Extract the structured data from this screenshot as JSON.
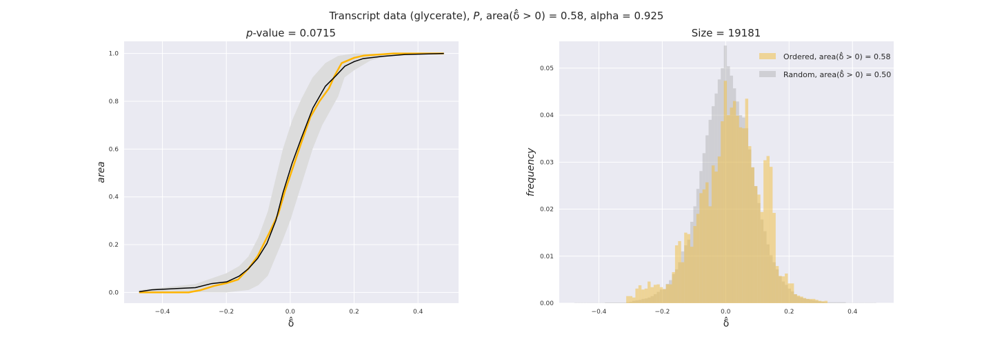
{
  "figure": {
    "title_parts": [
      "Transcript data (glycerate), ",
      "P",
      ", area(δ̂ > 0) = 0.58, alpha = 0.925"
    ]
  },
  "chart_data": [
    {
      "type": "line",
      "title_parts": [
        "p",
        "-value = 0.0715"
      ],
      "xlabel": "δ̂",
      "ylabel": "area",
      "xlim": [
        -0.52,
        0.527
      ],
      "ylim": [
        -0.045,
        1.051
      ],
      "xticks": [
        -0.4,
        -0.2,
        0.0,
        0.2,
        0.4
      ],
      "xtick_labels": [
        "−0.4",
        "−0.2",
        "0.0",
        "0.2",
        "0.4"
      ],
      "yticks": [
        0.0,
        0.2,
        0.4,
        0.6,
        0.8,
        1.0
      ],
      "ytick_labels": [
        "0.0",
        "0.2",
        "0.4",
        "0.6",
        "0.8",
        "1.0"
      ],
      "grid": true,
      "colors": {
        "ordered": "#FFB400",
        "random": "#000000",
        "band": "#DCDCDC",
        "background": "#EAEAF2"
      },
      "band": {
        "upper": [
          [
            -0.473,
            0.01
          ],
          [
            -0.297,
            0.035
          ],
          [
            -0.2,
            0.08
          ],
          [
            -0.16,
            0.11
          ],
          [
            -0.131,
            0.15
          ],
          [
            -0.1,
            0.23
          ],
          [
            -0.07,
            0.34
          ],
          [
            -0.045,
            0.48
          ],
          [
            -0.023,
            0.6
          ],
          [
            0.006,
            0.72
          ],
          [
            0.035,
            0.81
          ],
          [
            0.07,
            0.9
          ],
          [
            0.11,
            0.96
          ],
          [
            0.15,
            0.99
          ],
          [
            0.2,
            1.0
          ],
          [
            0.481,
            1.0
          ]
        ],
        "lower": [
          [
            -0.473,
            0.0
          ],
          [
            -0.2,
            0.0
          ],
          [
            -0.13,
            0.01
          ],
          [
            -0.1,
            0.03
          ],
          [
            -0.07,
            0.07
          ],
          [
            -0.045,
            0.15
          ],
          [
            -0.023,
            0.22
          ],
          [
            0.0,
            0.3
          ],
          [
            0.035,
            0.45
          ],
          [
            0.07,
            0.6
          ],
          [
            0.1,
            0.7
          ],
          [
            0.15,
            0.82
          ],
          [
            0.17,
            0.9
          ],
          [
            0.2,
            0.93
          ],
          [
            0.25,
            0.97
          ],
          [
            0.3,
            0.99
          ],
          [
            0.481,
            1.0
          ]
        ]
      },
      "series": [
        {
          "key": "random",
          "x": [
            -0.473,
            -0.433,
            -0.297,
            -0.246,
            -0.199,
            -0.16,
            -0.131,
            -0.102,
            -0.073,
            -0.045,
            -0.023,
            0.006,
            0.035,
            0.071,
            0.11,
            0.143,
            0.171,
            0.2,
            0.229,
            0.287,
            0.359,
            0.481
          ],
          "y": [
            0.003,
            0.011,
            0.02,
            0.037,
            0.044,
            0.068,
            0.099,
            0.142,
            0.205,
            0.301,
            0.416,
            0.541,
            0.647,
            0.772,
            0.863,
            0.907,
            0.947,
            0.966,
            0.979,
            0.988,
            0.996,
            1.0
          ]
        },
        {
          "key": "ordered",
          "x": [
            -0.473,
            -0.318,
            -0.282,
            -0.239,
            -0.199,
            -0.163,
            -0.131,
            -0.102,
            -0.066,
            -0.037,
            -0.016,
            0.013,
            0.035,
            0.063,
            0.092,
            0.121,
            0.139,
            0.161,
            0.2,
            0.229,
            0.323,
            0.481
          ],
          "y": [
            0.0,
            0.0,
            0.009,
            0.027,
            0.039,
            0.054,
            0.099,
            0.152,
            0.248,
            0.33,
            0.426,
            0.541,
            0.628,
            0.734,
            0.801,
            0.854,
            0.907,
            0.96,
            0.982,
            0.991,
            1.0,
            1.0
          ]
        }
      ]
    },
    {
      "type": "bar",
      "title": "Size = 19181",
      "xlabel": "δ̂",
      "ylabel": "frequency",
      "xlim": [
        -0.525,
        0.53
      ],
      "ylim": [
        0.0,
        0.0557
      ],
      "xticks": [
        -0.4,
        -0.2,
        0.0,
        0.2,
        0.4
      ],
      "xtick_labels": [
        "−0.4",
        "−0.2",
        "0.0",
        "0.2",
        "0.4"
      ],
      "yticks": [
        0.0,
        0.01,
        0.02,
        0.03,
        0.04,
        0.05
      ],
      "ytick_labels": [
        "0.00",
        "0.01",
        "0.02",
        "0.03",
        "0.04",
        "0.05"
      ],
      "grid": true,
      "legend_position": "top-right",
      "series": [
        {
          "name": "Random, area(δ̂ > 0) = 0.50",
          "color": "#A8A8A8",
          "bin_start": -0.4772,
          "bin_width": 0.00962,
          "values": [
            5e-05,
            5e-05,
            5e-05,
            5e-05,
            5e-05,
            5e-05,
            5e-05,
            5e-05,
            5e-05,
            5e-05,
            0.00015,
            0.00015,
            0.00015,
            0.00015,
            0.00015,
            0.00015,
            0.00015,
            0.0002,
            0.0003,
            0.0005,
            0.0006,
            0.0007,
            0.0009,
            0.001,
            0.0012,
            0.0015,
            0.0019,
            0.0024,
            0.0029,
            0.003,
            0.0041,
            0.0049,
            0.0062,
            0.0072,
            0.0087,
            0.011,
            0.0123,
            0.0135,
            0.0173,
            0.0206,
            0.0243,
            0.0281,
            0.0319,
            0.0357,
            0.039,
            0.0419,
            0.0446,
            0.0476,
            0.05,
            0.0548,
            0.0504,
            0.0484,
            0.0457,
            0.0429,
            0.04,
            0.0395,
            0.0372,
            0.0327,
            0.0289,
            0.0249,
            0.0213,
            0.0178,
            0.0153,
            0.0125,
            0.0102,
            0.0087,
            0.0072,
            0.0057,
            0.0046,
            0.0039,
            0.0031,
            0.0025,
            0.0019,
            0.0014,
            0.0012,
            0.001,
            0.0009,
            0.0007,
            0.0006,
            0.0005,
            0.0004,
            0.0003,
            0.0002,
            0.0002,
            0.0002,
            0.0002,
            0.0002,
            0.0002,
            0.0002,
            5e-05,
            5e-05,
            5e-05,
            5e-05,
            5e-05,
            5e-05,
            5e-05,
            5e-05,
            5e-05,
            5e-05
          ]
        },
        {
          "name": "Ordered, area(δ̂ > 0) = 0.58",
          "color": "#F2BE3C",
          "bin_start": -0.3137,
          "bin_width": 0.00962,
          "values": [
            0.0015,
            0.0015,
            0.0012,
            0.0031,
            0.0038,
            0.0029,
            0.0031,
            0.0046,
            0.0034,
            0.0039,
            0.004,
            0.0034,
            0.003,
            0.004,
            0.004,
            0.0066,
            0.0123,
            0.0132,
            0.0087,
            0.015,
            0.0147,
            0.012,
            0.0164,
            0.019,
            0.0234,
            0.0242,
            0.0257,
            0.0206,
            0.0293,
            0.028,
            0.0312,
            0.0387,
            0.0473,
            0.04,
            0.0416,
            0.043,
            0.0399,
            0.0374,
            0.0372,
            0.0435,
            0.0334,
            0.0289,
            0.0249,
            0.0231,
            0.0194,
            0.0304,
            0.0313,
            0.029,
            0.0192,
            0.0079,
            0.0058,
            0.0057,
            0.0063,
            0.0042,
            0.0042,
            0.0019,
            0.0016,
            0.0014,
            0.0011,
            0.0009,
            0.0009,
            0.0009,
            0.0007,
            0.0005,
            0.0004,
            0.0005
          ]
        }
      ],
      "legend_order": [
        1,
        0
      ]
    }
  ]
}
